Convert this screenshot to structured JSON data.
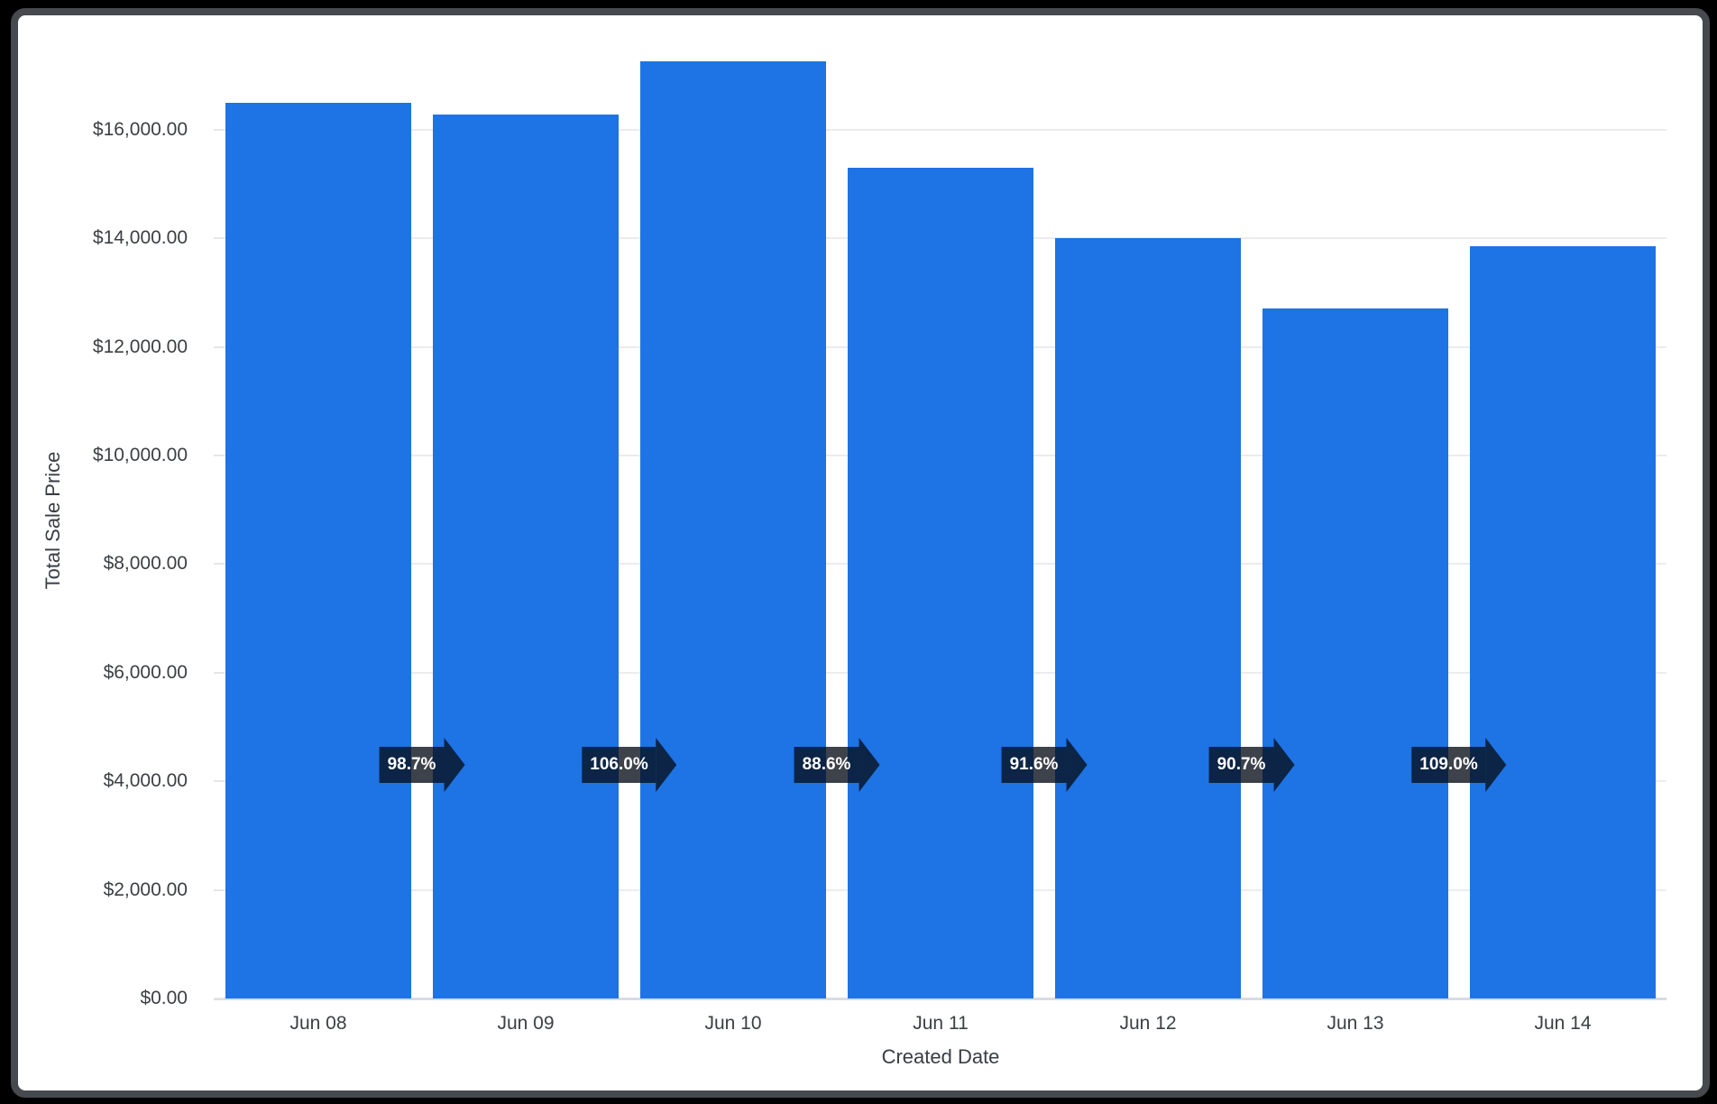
{
  "chart_data": {
    "type": "bar",
    "title": "",
    "xlabel": "Created Date",
    "ylabel": "Total Sale Price",
    "categories": [
      "Jun 08",
      "Jun 09",
      "Jun 10",
      "Jun 11",
      "Jun 12",
      "Jun 13",
      "Jun 14"
    ],
    "series": [
      {
        "name": "Total Sale Price",
        "values": [
          16500,
          16286,
          17263,
          15295,
          14010,
          12707,
          13851
        ]
      }
    ],
    "value_unit": "USD",
    "ylim": [
      0,
      18000
    ],
    "grid": true,
    "legend_position": "none",
    "y_ticks": [
      {
        "value": 0,
        "label": "$0.00"
      },
      {
        "value": 2000,
        "label": "$2,000.00"
      },
      {
        "value": 4000,
        "label": "$4,000.00"
      },
      {
        "value": 6000,
        "label": "$6,000.00"
      },
      {
        "value": 8000,
        "label": "$8,000.00"
      },
      {
        "value": 10000,
        "label": "$10,000.00"
      },
      {
        "value": 12000,
        "label": "$12,000.00"
      },
      {
        "value": 14000,
        "label": "$14,000.00"
      },
      {
        "value": 16000,
        "label": "$16,000.00"
      }
    ],
    "period_over_period_badges": {
      "shape": "right-arrow",
      "anchor_value": 4300,
      "labels": [
        "98.7%",
        "106.0%",
        "88.6%",
        "91.6%",
        "90.7%",
        "109.0%"
      ]
    },
    "colors": {
      "bar": "#1e73e5",
      "badge_background": "rgba(8,14,24,0.78)",
      "badge_text": "#ffffff",
      "gridline": "#ececee",
      "baseline": "#d8dbe2",
      "tick_label": "#3c4043",
      "axis_title": "#383e44",
      "card_background": "#ffffff",
      "card_border": "#46494e",
      "page_background": "#000000"
    }
  }
}
